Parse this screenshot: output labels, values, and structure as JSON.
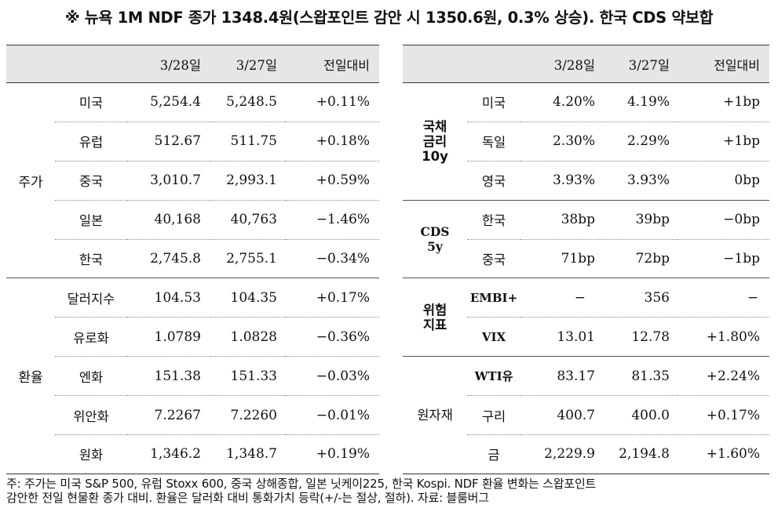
{
  "title": "※ 뉴욕 1M NDF 종가 1348.4원(스왑포인트 감안 시 1350.6원, 0.3% 상승). 한국 CDS 약보합",
  "left": {
    "headers": [
      "",
      "",
      "3/28일",
      "3/27일",
      "전일대비"
    ],
    "groups": [
      {
        "label": "주가",
        "rows": [
          {
            "name": "미국",
            "d1": "5,254.4",
            "d2": "5,248.5",
            "chg": "+0.11%"
          },
          {
            "name": "유럽",
            "d1": "512.67",
            "d2": "511.75",
            "chg": "+0.18%"
          },
          {
            "name": "중국",
            "d1": "3,010.7",
            "d2": "2,993.1",
            "chg": "+0.59%"
          },
          {
            "name": "일본",
            "d1": "40,168",
            "d2": "40,763",
            "chg": "−1.46%"
          },
          {
            "name": "한국",
            "d1": "2,745.8",
            "d2": "2,755.1",
            "chg": "−0.34%"
          }
        ]
      },
      {
        "label": "환율",
        "rows": [
          {
            "name": "달러지수",
            "d1": "104.53",
            "d2": "104.35",
            "chg": "+0.17%"
          },
          {
            "name": "유로화",
            "d1": "1.0789",
            "d2": "1.0828",
            "chg": "−0.36%"
          },
          {
            "name": "엔화",
            "d1": "151.38",
            "d2": "151.33",
            "chg": "−0.03%"
          },
          {
            "name": "위안화",
            "d1": "7.2267",
            "d2": "7.2260",
            "chg": "−0.01%"
          },
          {
            "name": "원화",
            "d1": "1,346.2",
            "d2": "1,348.7",
            "chg": "+0.19%"
          }
        ]
      }
    ]
  },
  "right": {
    "headers": [
      "",
      "",
      "3/28일",
      "3/27일",
      "전일대비"
    ],
    "groups": [
      {
        "label": "국채\n금리\n10y",
        "rows": [
          {
            "name": "미국",
            "d1": "4.20%",
            "d2": "4.19%",
            "chg": "+1bp"
          },
          {
            "name": "독일",
            "d1": "2.30%",
            "d2": "2.29%",
            "chg": "+1bp"
          },
          {
            "name": "영국",
            "d1": "3.93%",
            "d2": "3.93%",
            "chg": "0bp"
          }
        ]
      },
      {
        "label": "CDS\n5y",
        "rows": [
          {
            "name": "한국",
            "d1": "38bp",
            "d2": "39bp",
            "chg": "−0bp"
          },
          {
            "name": "중국",
            "d1": "71bp",
            "d2": "72bp",
            "chg": "−1bp"
          }
        ]
      },
      {
        "label": "위험\n지표",
        "rows": [
          {
            "name": "EMBI+",
            "d1": "−",
            "d2": "356",
            "chg": "−"
          },
          {
            "name": "VIX",
            "d1": "13.01",
            "d2": "12.78",
            "chg": "+1.80%"
          }
        ]
      },
      {
        "label": "원자재",
        "rows": [
          {
            "name": "WTI유",
            "d1": "83.17",
            "d2": "81.35",
            "chg": "+2.24%"
          },
          {
            "name": "구리",
            "d1": "400.7",
            "d2": "400.0",
            "chg": "+0.17%"
          },
          {
            "name": "금",
            "d1": "2,229.9",
            "d2": "2,194.8",
            "chg": "+1.60%"
          }
        ]
      }
    ]
  },
  "footnote": {
    "line1": "주: 주가는 미국 S&P 500, 유럽 Stoxx 600, 중국 상해종합, 일본 닛케이225, 한국 Kospi. NDF 환율 변화는 스왑포인트",
    "line2": "감안한 전일 현물환 종가 대비. 환율은 달러화 대비 통화가치 등락(+/-는 절상, 절하). 자료: 블룸버그"
  }
}
